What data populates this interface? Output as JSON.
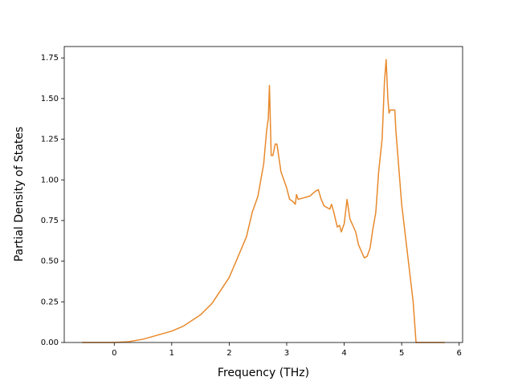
{
  "chart_data": {
    "type": "line",
    "xlabel": "Frequency (THz)",
    "ylabel": "Partial Density of States",
    "x": [
      -0.56,
      0,
      0.25,
      0.5,
      1,
      1.2,
      1.5,
      1.7,
      2,
      2.3,
      2.4,
      2.5,
      2.6,
      2.65,
      2.68,
      2.7,
      2.73,
      2.76,
      2.8,
      2.83,
      2.9,
      3.0,
      3.05,
      3.1,
      3.15,
      3.17,
      3.2,
      3.3,
      3.4,
      3.5,
      3.55,
      3.6,
      3.65,
      3.75,
      3.78,
      3.82,
      3.88,
      3.92,
      3.95,
      4.0,
      4.05,
      4.1,
      4.2,
      4.25,
      4.35,
      4.4,
      4.45,
      4.5,
      4.55,
      4.6,
      4.66,
      4.7,
      4.73,
      4.76,
      4.78,
      4.8,
      4.88,
      4.9,
      5.0,
      5.1,
      5.2,
      5.25,
      5.75
    ],
    "series": [
      {
        "color": "#e8892c",
        "values": [
          0,
          0,
          0.005,
          0.02,
          0.07,
          0.1,
          0.17,
          0.24,
          0.4,
          0.65,
          0.8,
          0.9,
          1.1,
          1.3,
          1.38,
          1.58,
          1.15,
          1.15,
          1.22,
          1.22,
          1.05,
          0.95,
          0.88,
          0.87,
          0.85,
          0.91,
          0.88,
          0.89,
          0.9,
          0.93,
          0.94,
          0.88,
          0.84,
          0.82,
          0.85,
          0.8,
          0.71,
          0.72,
          0.68,
          0.73,
          0.88,
          0.76,
          0.68,
          0.6,
          0.52,
          0.53,
          0.58,
          0.7,
          0.8,
          1.05,
          1.25,
          1.6,
          1.74,
          1.5,
          1.41,
          1.43,
          1.43,
          1.3,
          0.85,
          0.55,
          0.25,
          0,
          0
        ]
      }
    ],
    "xlim": [
      -0.87,
      6.06
    ],
    "ylim": [
      0,
      1.82
    ],
    "xticks": [
      0,
      1,
      2,
      3,
      4,
      5,
      6
    ],
    "yticks": [
      {
        "value": 0,
        "label": "0.00"
      },
      {
        "value": 0.25,
        "label": "0.25"
      },
      {
        "value": 0.5,
        "label": "0.50"
      },
      {
        "value": 0.75,
        "label": "0.75"
      },
      {
        "value": 1,
        "label": "1.00"
      },
      {
        "value": 1.25,
        "label": "1.25"
      },
      {
        "value": 1.5,
        "label": "1.50"
      },
      {
        "value": 1.75,
        "label": "1.75"
      }
    ]
  }
}
